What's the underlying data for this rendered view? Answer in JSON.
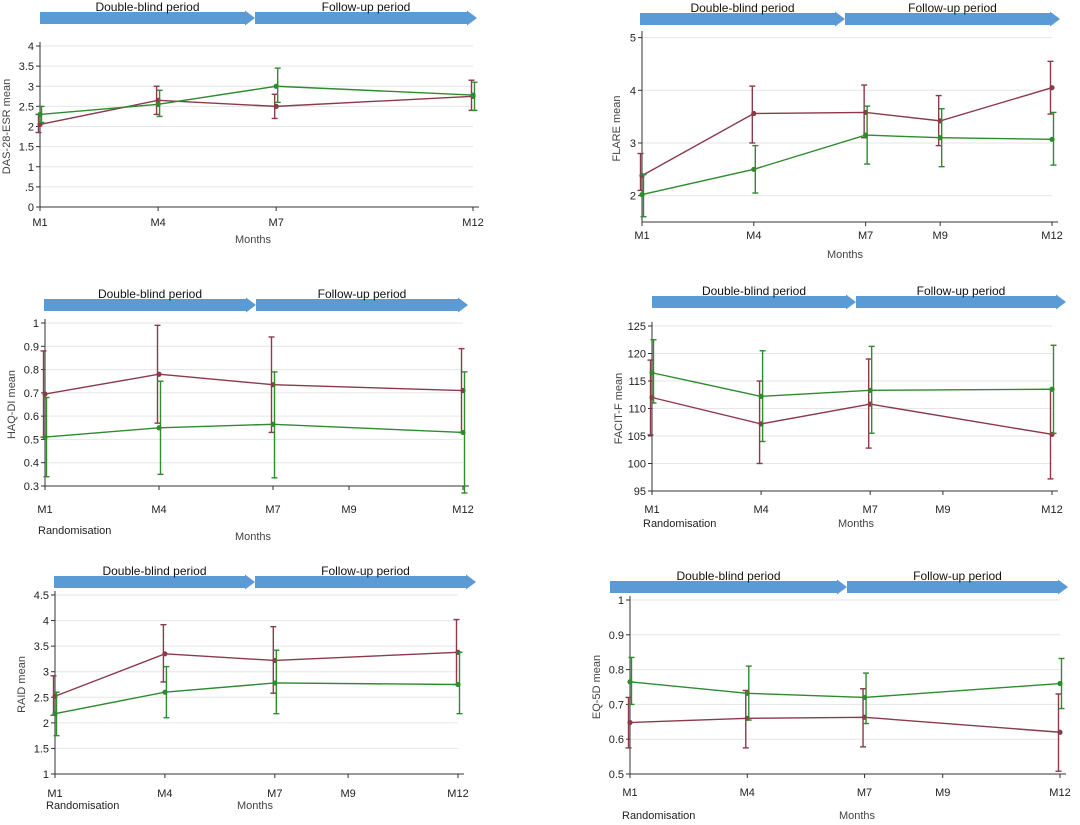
{
  "figure": {
    "period_labels": [
      "Double-blind period",
      "Follow-up period"
    ],
    "colors": {
      "series_a": "#8b3a4a",
      "series_b": "#2e8b2e",
      "arrow": "#5b9bd5",
      "grid": "#e6e6e6",
      "axis": "#333333"
    }
  },
  "chart_data": [
    {
      "id": "das28",
      "type": "line",
      "ylabel": "DAS-28-ESR mean",
      "xlabel": "Months",
      "extra_label": "",
      "categories": [
        "M1",
        "M4",
        "M7",
        "M12"
      ],
      "x": [
        1,
        4,
        7,
        12
      ],
      "ylim": [
        0,
        4
      ],
      "yticks": [
        0,
        0.5,
        1,
        1.5,
        2,
        2.5,
        3,
        3.5,
        4
      ],
      "ytick_labels": [
        "0",
        ".5",
        "1",
        "1.5",
        "2",
        "2.5",
        "3",
        "3.5",
        "4"
      ],
      "grid": true,
      "series": [
        {
          "values": [
            2.05,
            2.65,
            2.5,
            2.75
          ],
          "err_low": [
            1.85,
            2.3,
            2.2,
            2.4
          ],
          "err_high": [
            2.3,
            3.0,
            2.8,
            3.15
          ]
        },
        {
          "values": [
            2.3,
            2.55,
            3.0,
            2.78
          ],
          "err_low": [
            2.1,
            2.25,
            2.6,
            2.4
          ],
          "err_high": [
            2.5,
            2.9,
            3.45,
            3.1
          ]
        }
      ]
    },
    {
      "id": "flare",
      "type": "line",
      "ylabel": "FLARE mean",
      "xlabel": "Months",
      "extra_label": "",
      "categories": [
        "M1",
        "M4",
        "M7",
        "M9",
        "M12"
      ],
      "x": [
        1,
        4,
        7,
        9,
        12
      ],
      "ylim": [
        1.5,
        5.05
      ],
      "yticks": [
        2,
        3,
        4,
        5
      ],
      "ytick_labels": [
        "2",
        "3",
        "4",
        "5"
      ],
      "grid": true,
      "series": [
        {
          "values": [
            2.38,
            3.56,
            3.58,
            3.42,
            4.05
          ],
          "err_low": [
            2.1,
            3.0,
            3.1,
            2.95,
            3.55
          ],
          "err_high": [
            2.8,
            4.08,
            4.1,
            3.9,
            4.55
          ]
        },
        {
          "values": [
            2.02,
            2.5,
            3.15,
            3.1,
            3.07
          ],
          "err_low": [
            1.6,
            2.05,
            2.6,
            2.55,
            2.58
          ],
          "err_high": [
            2.4,
            2.95,
            3.7,
            3.65,
            3.58
          ]
        }
      ]
    },
    {
      "id": "haqdi",
      "type": "line",
      "ylabel": "HAQ-DI mean",
      "xlabel": "Months",
      "extra_label": "Randomisation",
      "categories": [
        "M1",
        "M4",
        "M7",
        "M9",
        "M12"
      ],
      "x": [
        1,
        4,
        7,
        9,
        12
      ],
      "ylim": [
        0.3,
        1.0
      ],
      "yticks": [
        0.3,
        0.4,
        0.5,
        0.6,
        0.7,
        0.8,
        0.9,
        1.0
      ],
      "ytick_labels": [
        "0.3",
        "0.4",
        "0.5",
        "0.6",
        "0.7",
        "0.8",
        "0.9",
        "1"
      ],
      "grid": true,
      "series": [
        {
          "values": [
            0.695,
            0.78,
            0.735,
            0.71
          ],
          "x": [
            1,
            4,
            7,
            12
          ],
          "err_low": [
            0.51,
            0.57,
            0.53,
            0.53
          ],
          "err_high": [
            0.88,
            0.99,
            0.94,
            0.89
          ]
        },
        {
          "values": [
            0.51,
            0.55,
            0.565,
            0.53
          ],
          "x": [
            1,
            4,
            7,
            12
          ],
          "err_low": [
            0.34,
            0.35,
            0.335,
            0.27
          ],
          "err_high": [
            0.68,
            0.75,
            0.79,
            0.79
          ]
        }
      ]
    },
    {
      "id": "facit",
      "type": "line",
      "ylabel": "FACIT-F mean",
      "xlabel": "Months",
      "extra_label": "Randomisation",
      "categories": [
        "M1",
        "M4",
        "M7",
        "M9",
        "M12"
      ],
      "x": [
        1,
        4,
        7,
        9,
        12
      ],
      "ylim": [
        95,
        125
      ],
      "yticks": [
        95,
        100,
        105,
        110,
        115,
        120,
        125
      ],
      "ytick_labels": [
        "95",
        "100",
        "105",
        "110",
        "115",
        "120",
        "125"
      ],
      "grid": true,
      "series": [
        {
          "values": [
            112.0,
            107.2,
            110.8,
            105.3
          ],
          "x": [
            1,
            4,
            7,
            12
          ],
          "err_low": [
            105.2,
            100.0,
            102.8,
            97.2
          ],
          "err_high": [
            118.8,
            115.0,
            119.0,
            113.5
          ]
        },
        {
          "values": [
            116.5,
            112.2,
            113.3,
            113.5
          ],
          "x": [
            1,
            4,
            7,
            12
          ],
          "err_low": [
            111.0,
            104.0,
            105.5,
            105.5
          ],
          "err_high": [
            122.5,
            120.5,
            121.3,
            121.5
          ]
        }
      ]
    },
    {
      "id": "raid",
      "type": "line",
      "ylabel": "RAID mean",
      "xlabel": "Months",
      "extra_label": "Randomisation",
      "categories": [
        "M1",
        "M4",
        "M7",
        "M9",
        "M12"
      ],
      "x": [
        1,
        4,
        7,
        9,
        12
      ],
      "ylim": [
        1,
        4.5
      ],
      "yticks": [
        1,
        1.5,
        2,
        2.5,
        3,
        3.5,
        4,
        4.5
      ],
      "ytick_labels": [
        "1",
        "1.5",
        "2",
        "2.5",
        "3",
        "3.5",
        "4",
        "4.5"
      ],
      "grid": true,
      "series": [
        {
          "values": [
            2.52,
            3.35,
            3.22,
            3.38
          ],
          "x": [
            1,
            4,
            7,
            12
          ],
          "err_low": [
            2.15,
            2.8,
            2.58,
            2.75
          ],
          "err_high": [
            2.92,
            3.92,
            3.88,
            4.02
          ]
        },
        {
          "values": [
            2.18,
            2.6,
            2.78,
            2.75
          ],
          "x": [
            1,
            4,
            7,
            12
          ],
          "err_low": [
            1.75,
            2.1,
            2.18,
            2.18
          ],
          "err_high": [
            2.6,
            3.1,
            3.42,
            3.38
          ]
        }
      ]
    },
    {
      "id": "eq5d",
      "type": "line",
      "ylabel": "EQ-5D mean",
      "xlabel": "Months",
      "extra_label": "Randomisation",
      "categories": [
        "M1",
        "M4",
        "M7",
        "M9",
        "M12"
      ],
      "x": [
        1,
        4,
        7,
        9,
        12
      ],
      "ylim": [
        0.5,
        1.0
      ],
      "yticks": [
        0.5,
        0.6,
        0.7,
        0.8,
        0.9,
        1.0
      ],
      "ytick_labels": [
        "0.5",
        "0.6",
        "0.7",
        "0.8",
        "0.9",
        "1"
      ],
      "grid": true,
      "series": [
        {
          "values": [
            0.648,
            0.66,
            0.663,
            0.62
          ],
          "x": [
            1,
            4,
            7,
            12
          ],
          "err_low": [
            0.575,
            0.575,
            0.578,
            0.508
          ],
          "err_high": [
            0.72,
            0.74,
            0.745,
            0.73
          ]
        },
        {
          "values": [
            0.765,
            0.732,
            0.72,
            0.76
          ],
          "x": [
            1,
            4,
            7,
            12
          ],
          "err_low": [
            0.7,
            0.655,
            0.645,
            0.688
          ],
          "err_high": [
            0.835,
            0.81,
            0.79,
            0.832
          ]
        }
      ]
    }
  ]
}
